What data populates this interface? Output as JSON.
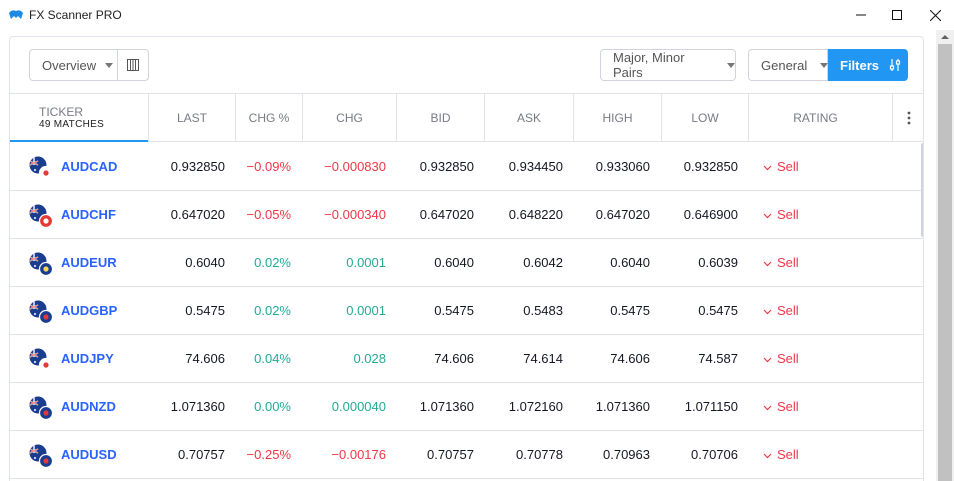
{
  "window": {
    "title": "FX Scanner PRO"
  },
  "toolbar": {
    "overview_label": "Overview",
    "pairs_label": "Major, Minor Pairs",
    "general_label": "General",
    "filters_label": "Filters"
  },
  "header": {
    "ticker_label": "TICKER",
    "matches_label": "49 MATCHES",
    "columns": [
      "LAST",
      "CHG %",
      "CHG",
      "BID",
      "ASK",
      "HIGH",
      "LOW",
      "RATING"
    ]
  },
  "colors": {
    "accent": "#2196f3",
    "negative": "#f23645",
    "positive": "#22ab94",
    "symbol": "#2962ff"
  },
  "rows": [
    {
      "symbol": "AUDCAD",
      "last": "0.932850",
      "chg_pct": "−0.09%",
      "chg": "−0.000830",
      "bid": "0.932850",
      "ask": "0.934450",
      "high": "0.933060",
      "low": "0.932850",
      "rating": "Sell",
      "dir": "neg",
      "flag2": "ca"
    },
    {
      "symbol": "AUDCHF",
      "last": "0.647020",
      "chg_pct": "−0.05%",
      "chg": "−0.000340",
      "bid": "0.647020",
      "ask": "0.648220",
      "high": "0.647020",
      "low": "0.646900",
      "rating": "Sell",
      "dir": "neg",
      "flag2": "ch"
    },
    {
      "symbol": "AUDEUR",
      "last": "0.6040",
      "chg_pct": "0.02%",
      "chg": "0.0001",
      "bid": "0.6040",
      "ask": "0.6042",
      "high": "0.6040",
      "low": "0.6039",
      "rating": "Sell",
      "dir": "pos",
      "flag2": "eu"
    },
    {
      "symbol": "AUDGBP",
      "last": "0.5475",
      "chg_pct": "0.02%",
      "chg": "0.0001",
      "bid": "0.5475",
      "ask": "0.5483",
      "high": "0.5475",
      "low": "0.5475",
      "rating": "Sell",
      "dir": "pos",
      "flag2": "gb"
    },
    {
      "symbol": "AUDJPY",
      "last": "74.606",
      "chg_pct": "0.04%",
      "chg": "0.028",
      "bid": "74.606",
      "ask": "74.614",
      "high": "74.606",
      "low": "74.587",
      "rating": "Sell",
      "dir": "pos",
      "flag2": "jp"
    },
    {
      "symbol": "AUDNZD",
      "last": "1.071360",
      "chg_pct": "0.00%",
      "chg": "0.000040",
      "bid": "1.071360",
      "ask": "1.072160",
      "high": "1.071360",
      "low": "1.071150",
      "rating": "Sell",
      "dir": "pos",
      "flag2": "nz"
    },
    {
      "symbol": "AUDUSD",
      "last": "0.70757",
      "chg_pct": "−0.25%",
      "chg": "−0.00176",
      "bid": "0.70757",
      "ask": "0.70778",
      "high": "0.70963",
      "low": "0.70706",
      "rating": "Sell",
      "dir": "neg",
      "flag2": "us"
    }
  ]
}
